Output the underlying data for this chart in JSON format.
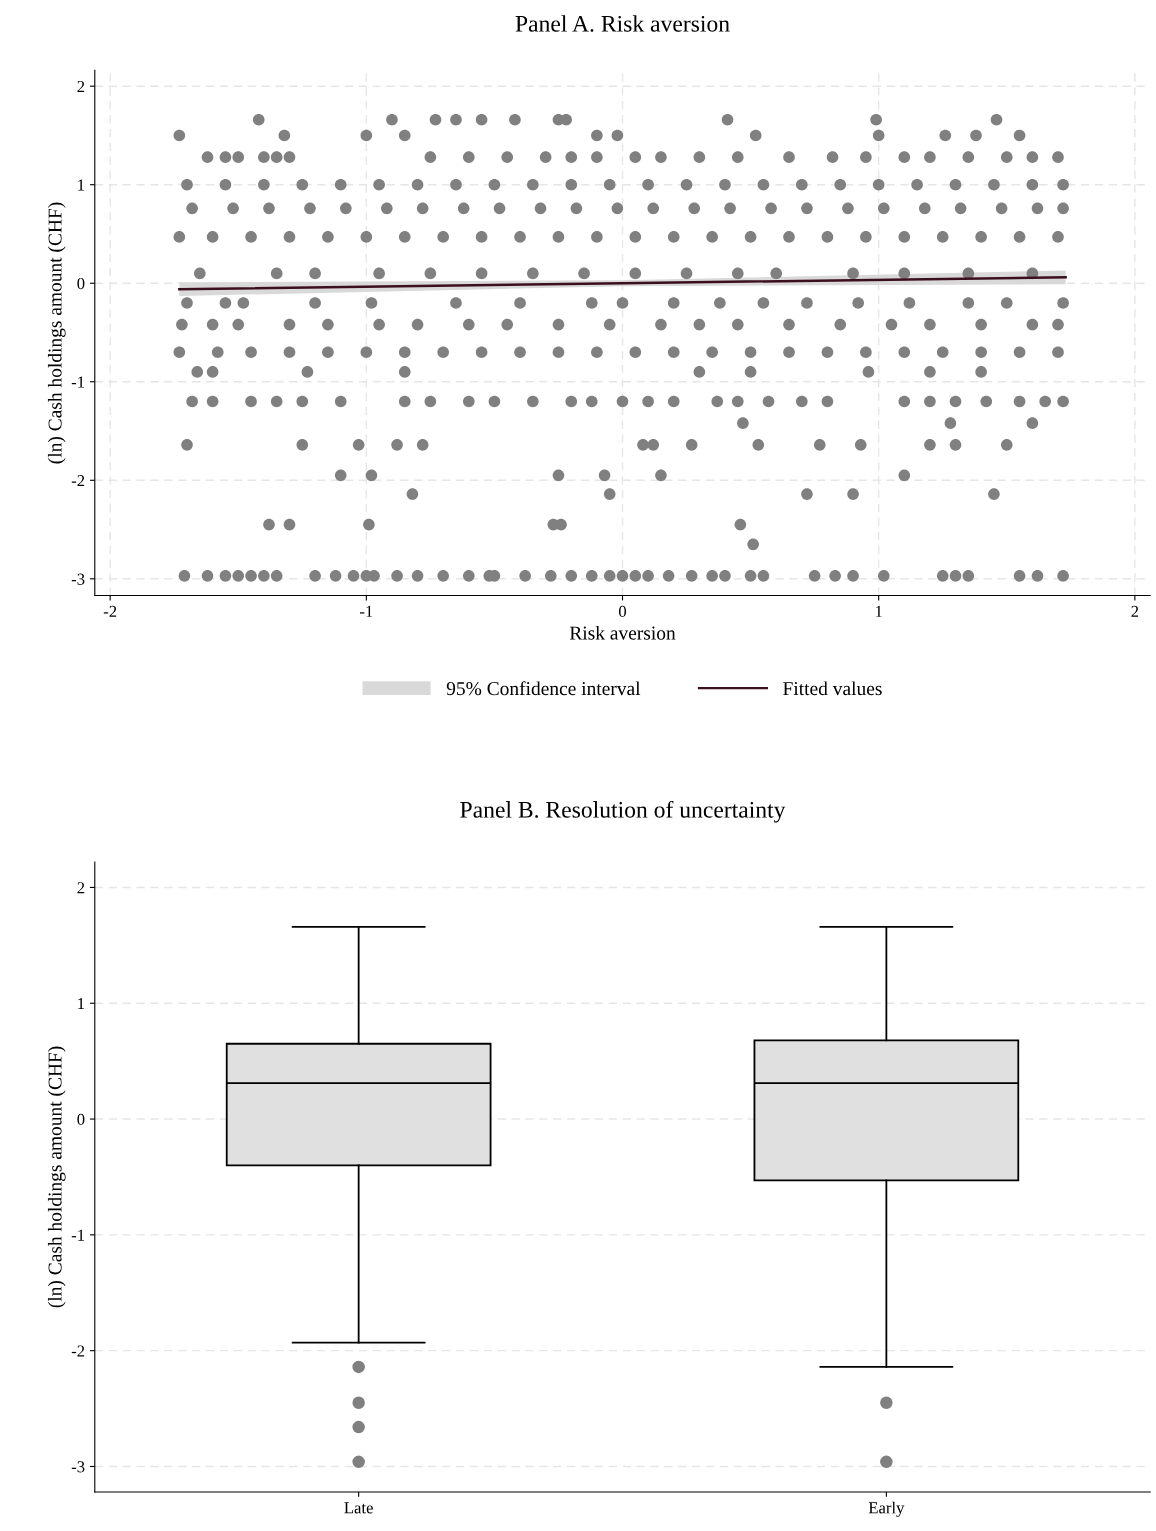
{
  "chart_data": [
    {
      "type": "scatter",
      "title": "Panel A. Risk aversion",
      "xlabel": "Risk aversion",
      "ylabel": "(ln) Cash holdings amount (CHF)",
      "xlim": [
        -2.06,
        2.06
      ],
      "ylim": [
        -3.17,
        2.16
      ],
      "xticks": [
        -2,
        -1,
        0,
        1,
        2
      ],
      "yticks": [
        -3,
        -2,
        -1,
        0,
        1,
        2
      ],
      "grid": true,
      "legend": "bottom",
      "marker": "circle",
      "annotations": [
        "95% Confidence interval"
      ],
      "series": [
        {
          "type": "scatter",
          "color": "#808080",
          "x": [
            -1.42,
            -0.9,
            -0.73,
            -0.65,
            -0.55,
            -0.42,
            -0.25,
            -0.22,
            0.41,
            0.99,
            1.46
          ],
          "values": [
            1.66,
            1.66,
            1.66,
            1.66,
            1.66,
            1.66,
            1.66,
            1.66,
            1.66,
            1.66,
            1.66
          ]
        },
        {
          "type": "scatter",
          "color": "#808080",
          "x": [
            -1.73,
            -1.32,
            -1.0,
            -0.85,
            -0.1,
            -0.02,
            0.52,
            1.0,
            1.26,
            1.38,
            1.55
          ],
          "values": [
            1.5,
            1.5,
            1.5,
            1.5,
            1.5,
            1.5,
            1.5,
            1.5,
            1.5,
            1.5,
            1.5
          ]
        },
        {
          "type": "scatter",
          "color": "#808080",
          "x": [
            -1.62,
            -1.55,
            -1.5,
            -1.4,
            -1.35,
            -1.3,
            -0.75,
            -0.6,
            -0.45,
            -0.3,
            -0.2,
            -0.1,
            0.05,
            0.15,
            0.3,
            0.45,
            0.65,
            0.82,
            0.95,
            1.1,
            1.2,
            1.35,
            1.5,
            1.6,
            1.7
          ],
          "values": [
            1.28,
            1.28,
            1.28,
            1.28,
            1.28,
            1.28,
            1.28,
            1.28,
            1.28,
            1.28,
            1.28,
            1.28,
            1.28,
            1.28,
            1.28,
            1.28,
            1.28,
            1.28,
            1.28,
            1.28,
            1.28,
            1.28,
            1.28,
            1.28,
            1.28
          ]
        },
        {
          "type": "scatter",
          "color": "#808080",
          "x": [
            -1.7,
            -1.55,
            -1.4,
            -1.25,
            -1.1,
            -0.95,
            -0.8,
            -0.65,
            -0.5,
            -0.35,
            -0.2,
            -0.05,
            0.1,
            0.25,
            0.4,
            0.55,
            0.7,
            0.85,
            1.0,
            1.15,
            1.3,
            1.45,
            1.6,
            1.72
          ],
          "values": [
            1.0,
            1.0,
            1.0,
            1.0,
            1.0,
            1.0,
            1.0,
            1.0,
            1.0,
            1.0,
            1.0,
            1.0,
            1.0,
            1.0,
            1.0,
            1.0,
            1.0,
            1.0,
            1.0,
            1.0,
            1.0,
            1.0,
            1.0,
            1.0
          ]
        },
        {
          "type": "scatter",
          "color": "#808080",
          "x": [
            -1.68,
            -1.52,
            -1.38,
            -1.22,
            -1.08,
            -0.92,
            -0.78,
            -0.62,
            -0.48,
            -0.32,
            -0.18,
            -0.02,
            0.12,
            0.28,
            0.42,
            0.58,
            0.72,
            0.88,
            1.02,
            1.18,
            1.32,
            1.48,
            1.62,
            1.72
          ],
          "values": [
            0.76,
            0.76,
            0.76,
            0.76,
            0.76,
            0.76,
            0.76,
            0.76,
            0.76,
            0.76,
            0.76,
            0.76,
            0.76,
            0.76,
            0.76,
            0.76,
            0.76,
            0.76,
            0.76,
            0.76,
            0.76,
            0.76,
            0.76,
            0.76
          ]
        },
        {
          "type": "scatter",
          "color": "#808080",
          "x": [
            -1.73,
            -1.6,
            -1.45,
            -1.3,
            -1.15,
            -1.0,
            -0.85,
            -0.7,
            -0.55,
            -0.4,
            -0.25,
            -0.1,
            0.05,
            0.2,
            0.35,
            0.5,
            0.65,
            0.8,
            0.95,
            1.1,
            1.25,
            1.4,
            1.55,
            1.7
          ],
          "values": [
            0.47,
            0.47,
            0.47,
            0.47,
            0.47,
            0.47,
            0.47,
            0.47,
            0.47,
            0.47,
            0.47,
            0.47,
            0.47,
            0.47,
            0.47,
            0.47,
            0.47,
            0.47,
            0.47,
            0.47,
            0.47,
            0.47,
            0.47,
            0.47
          ]
        },
        {
          "type": "scatter",
          "color": "#808080",
          "x": [
            -1.65,
            -1.35,
            -1.2,
            -0.95,
            -0.75,
            -0.55,
            -0.35,
            -0.15,
            0.05,
            0.25,
            0.45,
            0.6,
            0.9,
            1.1,
            1.35,
            1.6
          ],
          "values": [
            0.1,
            0.1,
            0.1,
            0.1,
            0.1,
            0.1,
            0.1,
            0.1,
            0.1,
            0.1,
            0.1,
            0.1,
            0.1,
            0.1,
            0.1,
            0.1
          ]
        },
        {
          "type": "scatter",
          "color": "#808080",
          "x": [
            -1.7,
            -1.55,
            -1.48,
            -1.2,
            -0.98,
            -0.65,
            -0.4,
            -0.12,
            0.0,
            0.2,
            0.38,
            0.55,
            0.72,
            0.92,
            1.12,
            1.35,
            1.5,
            1.72
          ],
          "values": [
            -0.2,
            -0.2,
            -0.2,
            -0.2,
            -0.2,
            -0.2,
            -0.2,
            -0.2,
            -0.2,
            -0.2,
            -0.2,
            -0.2,
            -0.2,
            -0.2,
            -0.2,
            -0.2,
            -0.2,
            -0.2
          ]
        },
        {
          "type": "scatter",
          "color": "#808080",
          "x": [
            -1.72,
            -1.6,
            -1.5,
            -1.3,
            -1.15,
            -0.95,
            -0.8,
            -0.6,
            -0.45,
            -0.25,
            -0.05,
            0.15,
            0.3,
            0.45,
            0.65,
            0.85,
            1.05,
            1.2,
            1.4,
            1.6,
            1.7
          ],
          "values": [
            -0.42,
            -0.42,
            -0.42,
            -0.42,
            -0.42,
            -0.42,
            -0.42,
            -0.42,
            -0.42,
            -0.42,
            -0.42,
            -0.42,
            -0.42,
            -0.42,
            -0.42,
            -0.42,
            -0.42,
            -0.42,
            -0.42,
            -0.42,
            -0.42
          ]
        },
        {
          "type": "scatter",
          "color": "#808080",
          "x": [
            -1.73,
            -1.58,
            -1.45,
            -1.3,
            -1.15,
            -1.0,
            -0.85,
            -0.7,
            -0.55,
            -0.4,
            -0.25,
            -0.1,
            0.05,
            0.2,
            0.35,
            0.5,
            0.65,
            0.8,
            0.95,
            1.1,
            1.25,
            1.4,
            1.55,
            1.7
          ],
          "values": [
            -0.7,
            -0.7,
            -0.7,
            -0.7,
            -0.7,
            -0.7,
            -0.7,
            -0.7,
            -0.7,
            -0.7,
            -0.7,
            -0.7,
            -0.7,
            -0.7,
            -0.7,
            -0.7,
            -0.7,
            -0.7,
            -0.7,
            -0.7,
            -0.7,
            -0.7,
            -0.7,
            -0.7
          ]
        },
        {
          "type": "scatter",
          "color": "#808080",
          "x": [
            -1.66,
            -1.6,
            -1.23,
            -0.85,
            0.3,
            0.5,
            0.96,
            1.2,
            1.4
          ],
          "values": [
            -0.9,
            -0.9,
            -0.9,
            -0.9,
            -0.9,
            -0.9,
            -0.9,
            -0.9,
            -0.9
          ]
        },
        {
          "type": "scatter",
          "color": "#808080",
          "x": [
            -1.68,
            -1.6,
            -1.45,
            -1.35,
            -1.25,
            -1.1,
            -0.85,
            -0.75,
            -0.6,
            -0.5,
            -0.35,
            -0.2,
            -0.12,
            0.0,
            0.1,
            0.2,
            0.37,
            0.45,
            0.57,
            0.7,
            0.8,
            1.1,
            1.2,
            1.3,
            1.42,
            1.55,
            1.65,
            1.72
          ],
          "values": [
            -1.2,
            -1.2,
            -1.2,
            -1.2,
            -1.2,
            -1.2,
            -1.2,
            -1.2,
            -1.2,
            -1.2,
            -1.2,
            -1.2,
            -1.2,
            -1.2,
            -1.2,
            -1.2,
            -1.2,
            -1.2,
            -1.2,
            -1.2,
            -1.2,
            -1.2,
            -1.2,
            -1.2,
            -1.2,
            -1.2,
            -1.2,
            -1.2
          ]
        },
        {
          "type": "scatter",
          "color": "#808080",
          "x": [
            0.47,
            1.28,
            1.6
          ],
          "values": [
            -1.42,
            -1.42,
            -1.42
          ]
        },
        {
          "type": "scatter",
          "color": "#808080",
          "x": [
            -1.7,
            -1.25,
            -1.03,
            -0.88,
            -0.78,
            0.08,
            0.12,
            0.27,
            0.53,
            0.77,
            0.93,
            1.2,
            1.3,
            1.5
          ],
          "values": [
            -1.64,
            -1.64,
            -1.64,
            -1.64,
            -1.64,
            -1.64,
            -1.64,
            -1.64,
            -1.64,
            -1.64,
            -1.64,
            -1.64,
            -1.64,
            -1.64
          ]
        },
        {
          "type": "scatter",
          "color": "#808080",
          "x": [
            -1.1,
            -0.98,
            -0.25,
            -0.07,
            0.15,
            1.1
          ],
          "values": [
            -1.95,
            -1.95,
            -1.95,
            -1.95,
            -1.95,
            -1.95
          ]
        },
        {
          "type": "scatter",
          "color": "#808080",
          "x": [
            -0.82,
            -0.05,
            0.72,
            0.9,
            1.45
          ],
          "values": [
            -2.14,
            -2.14,
            -2.14,
            -2.14,
            -2.14
          ]
        },
        {
          "type": "scatter",
          "color": "#808080",
          "x": [
            -1.38,
            -1.3,
            -0.99,
            -0.27,
            -0.24,
            0.46
          ],
          "values": [
            -2.45,
            -2.45,
            -2.45,
            -2.45,
            -2.45,
            -2.45
          ]
        },
        {
          "type": "scatter",
          "color": "#808080",
          "x": [
            0.51
          ],
          "values": [
            -2.65
          ]
        },
        {
          "type": "scatter",
          "color": "#808080",
          "x": [
            -1.71,
            -1.62,
            -1.55,
            -1.5,
            -1.45,
            -1.4,
            -1.35,
            -1.2,
            -1.12,
            -1.05,
            -1.0,
            -0.97,
            -0.88,
            -0.8,
            -0.7,
            -0.6,
            -0.52,
            -0.5,
            -0.38,
            -0.28,
            -0.2,
            -0.12,
            -0.05,
            0.0,
            0.05,
            0.1,
            0.18,
            0.27,
            0.35,
            0.4,
            0.5,
            0.55,
            0.75,
            0.83,
            0.9,
            1.02,
            1.25,
            1.3,
            1.35,
            1.55,
            1.62,
            1.72
          ],
          "values": [
            -2.97,
            -2.97,
            -2.97,
            -2.97,
            -2.97,
            -2.97,
            -2.97,
            -2.97,
            -2.97,
            -2.97,
            -2.97,
            -2.97,
            -2.97,
            -2.97,
            -2.97,
            -2.97,
            -2.97,
            -2.97,
            -2.97,
            -2.97,
            -2.97,
            -2.97,
            -2.97,
            -2.97,
            -2.97,
            -2.97,
            -2.97,
            -2.97,
            -2.97,
            -2.97,
            -2.97,
            -2.97,
            -2.97,
            -2.97,
            -2.97,
            -2.97,
            -2.97,
            -2.97,
            -2.97,
            -2.97,
            -2.97,
            -2.97
          ]
        },
        {
          "type": "line",
          "name": "Fitted values",
          "color": "#3c0f1e",
          "marker": "none",
          "x": [
            -1.73,
            0,
            1.73
          ],
          "values": [
            -0.06,
            0,
            0.06
          ],
          "lower": [
            -0.13,
            -0.03,
            -0.01
          ],
          "upper": [
            0.01,
            0.03,
            0.13
          ]
        }
      ]
    },
    {
      "type": "box",
      "title": "Panel B. Resolution of uncertainty",
      "ylabel": "(ln) Cash holdings amount (CHF)",
      "categories": [
        "Late",
        "Early"
      ],
      "ylim": [
        -3.22,
        2.22
      ],
      "yticks": [
        -3,
        -2,
        -1,
        0,
        1,
        2
      ],
      "grid": "y",
      "color": "#e0e0e0",
      "boxes": [
        {
          "low": -1.93,
          "q1": -0.4,
          "median": 0.31,
          "q3": 0.65,
          "high": 1.66,
          "outliers": [
            -2.14,
            -2.45,
            -2.66,
            -2.96
          ]
        },
        {
          "low": -2.14,
          "q1": -0.53,
          "median": 0.31,
          "q3": 0.68,
          "high": 1.66,
          "outliers": [
            -2.45,
            -2.96
          ]
        }
      ]
    }
  ]
}
